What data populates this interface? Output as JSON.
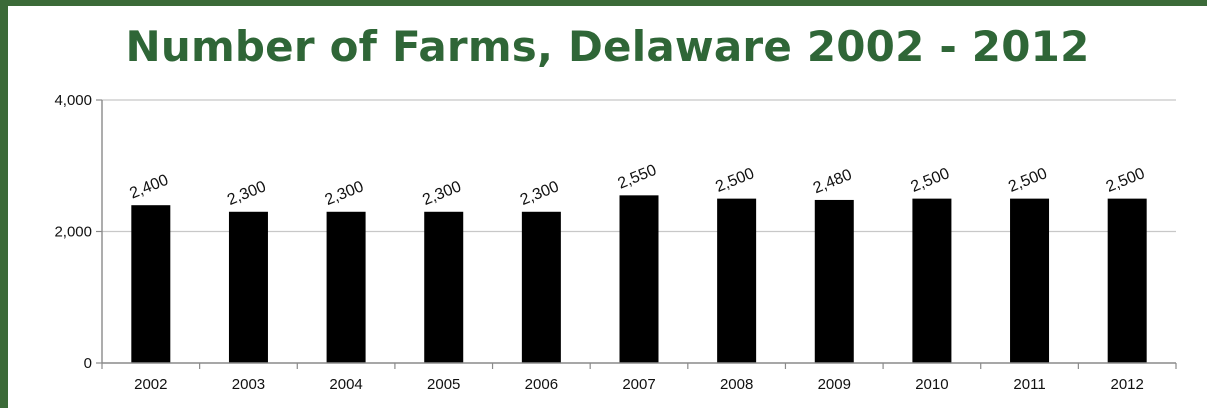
{
  "chart_data": {
    "type": "bar",
    "title": "Number of Farms, Delaware 2002 - 2012",
    "xlabel": "",
    "ylabel": "",
    "categories": [
      "2002",
      "2003",
      "2004",
      "2005",
      "2006",
      "2007",
      "2008",
      "2009",
      "2010",
      "2011",
      "2012"
    ],
    "values": [
      2400,
      2300,
      2300,
      2300,
      2300,
      2550,
      2500,
      2480,
      2500,
      2500,
      2500
    ],
    "data_labels": [
      "2,400",
      "2,300",
      "2,300",
      "2,300",
      "2,300",
      "2,550",
      "2,500",
      "2,480",
      "2,500",
      "2,500",
      "2,500"
    ],
    "ylim": [
      0,
      4000
    ],
    "yticks": [
      0,
      2000,
      4000
    ],
    "ytick_labels": [
      "0",
      "2,000",
      "4,000"
    ],
    "grid": true,
    "legend": "none",
    "colors": {
      "bar": "#000000",
      "grid": "#c8c8c8",
      "axis": "#8a8a8a",
      "title": "#2f6637",
      "border": "#3b6a38"
    }
  }
}
